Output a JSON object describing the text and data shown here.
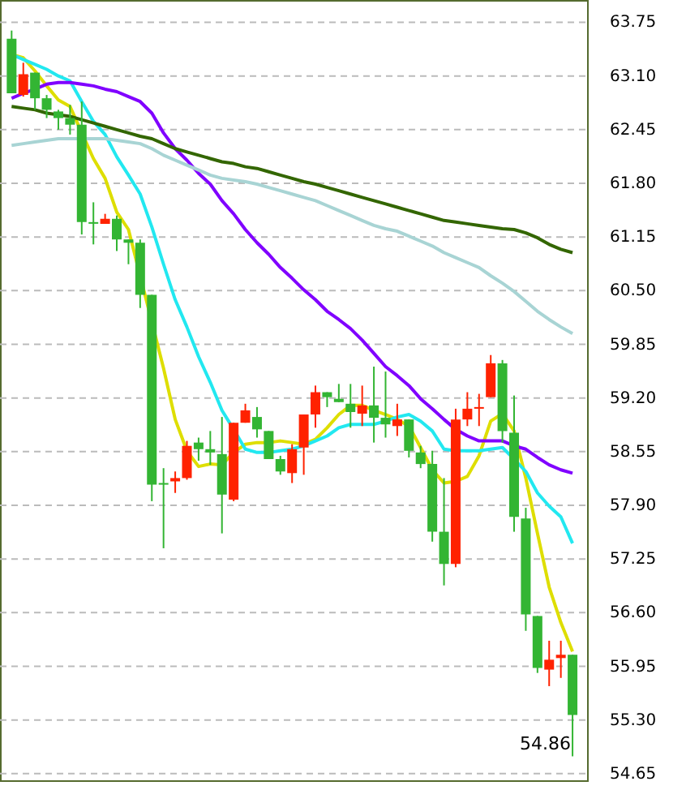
{
  "chart_data": {
    "type": "candlestick",
    "categories": [
      null,
      null,
      null,
      null,
      null,
      null,
      null,
      null,
      null,
      null,
      null,
      null,
      null,
      null,
      null,
      null,
      null,
      null,
      null,
      null,
      null,
      null,
      null,
      null,
      null,
      null,
      null,
      null,
      null,
      null,
      null,
      null,
      null,
      null,
      null,
      null,
      null,
      null,
      null,
      null,
      null,
      null,
      null,
      null,
      null,
      null,
      null,
      null,
      null
    ],
    "ohlc": [
      [
        63.55,
        63.65,
        62.89,
        62.89
      ],
      [
        62.87,
        63.26,
        62.85,
        63.12
      ],
      [
        63.14,
        63.14,
        62.69,
        62.83
      ],
      [
        62.83,
        62.87,
        62.59,
        62.69
      ],
      [
        62.67,
        62.69,
        62.45,
        62.59
      ],
      [
        62.59,
        62.75,
        62.39,
        62.51
      ],
      [
        62.51,
        62.79,
        61.18,
        61.33
      ],
      [
        61.33,
        61.57,
        61.06,
        61.31
      ],
      [
        61.31,
        61.43,
        61.31,
        61.37
      ],
      [
        61.37,
        61.41,
        60.98,
        61.12
      ],
      [
        61.12,
        61.12,
        60.82,
        61.08
      ],
      [
        61.08,
        61.12,
        60.29,
        60.45
      ],
      [
        60.45,
        60.45,
        57.95,
        58.15
      ],
      [
        58.17,
        58.35,
        57.38,
        58.15
      ],
      [
        58.19,
        58.31,
        58.05,
        58.23
      ],
      [
        58.23,
        58.68,
        58.21,
        58.62
      ],
      [
        58.66,
        58.72,
        58.44,
        58.58
      ],
      [
        58.58,
        58.8,
        58.39,
        58.54
      ],
      [
        58.52,
        58.97,
        57.56,
        58.03
      ],
      [
        57.97,
        58.9,
        57.95,
        58.9
      ],
      [
        58.9,
        59.13,
        58.9,
        59.05
      ],
      [
        58.97,
        59.09,
        58.72,
        58.82
      ],
      [
        58.8,
        58.8,
        58.46,
        58.46
      ],
      [
        58.46,
        58.5,
        58.27,
        58.31
      ],
      [
        58.29,
        58.64,
        58.17,
        58.58
      ],
      [
        58.6,
        59.0,
        58.27,
        59.0
      ],
      [
        59.0,
        59.35,
        58.84,
        59.27
      ],
      [
        59.27,
        59.27,
        59.09,
        59.21
      ],
      [
        59.19,
        59.37,
        59.15,
        59.15
      ],
      [
        59.13,
        59.37,
        58.84,
        59.03
      ],
      [
        59.01,
        59.35,
        58.86,
        59.11
      ],
      [
        59.11,
        59.58,
        58.66,
        58.96
      ],
      [
        58.96,
        59.52,
        58.72,
        58.88
      ],
      [
        58.86,
        59.13,
        58.74,
        58.94
      ],
      [
        58.94,
        58.94,
        58.48,
        58.56
      ],
      [
        58.54,
        58.62,
        58.35,
        58.4
      ],
      [
        58.4,
        58.56,
        57.46,
        57.58
      ],
      [
        57.58,
        58.23,
        56.93,
        57.19
      ],
      [
        57.19,
        59.07,
        57.15,
        58.94
      ],
      [
        58.94,
        59.27,
        58.86,
        59.07
      ],
      [
        59.07,
        59.25,
        58.86,
        59.09
      ],
      [
        59.21,
        59.72,
        59.21,
        59.62
      ],
      [
        59.62,
        59.66,
        58.66,
        58.8
      ],
      [
        58.78,
        59.23,
        57.58,
        57.76
      ],
      [
        57.74,
        57.87,
        56.38,
        56.58
      ],
      [
        56.56,
        56.56,
        55.87,
        55.93
      ],
      [
        55.91,
        56.26,
        55.71,
        56.03
      ],
      [
        56.05,
        56.26,
        55.81,
        56.09
      ],
      [
        56.09,
        56.09,
        54.86,
        55.36
      ]
    ],
    "colors": [
      "#33b533",
      "#ff2200",
      "#33b533",
      "#33b533",
      "#33b533",
      "#33b533",
      "#33b533",
      "#33b533",
      "#ff2200",
      "#33b533",
      "#33b533",
      "#33b533",
      "#33b533",
      "#33b533",
      "#ff2200",
      "#ff2200",
      "#33b533",
      "#33b533",
      "#33b533",
      "#ff2200",
      "#ff2200",
      "#33b533",
      "#33b533",
      "#33b533",
      "#ff2200",
      "#ff2200",
      "#ff2200",
      "#33b533",
      "#33b533",
      "#33b533",
      "#ff2200",
      "#33b533",
      "#33b533",
      "#ff2200",
      "#33b533",
      "#33b533",
      "#33b533",
      "#33b533",
      "#ff2200",
      "#ff2200",
      "#ff2200",
      "#ff2200",
      "#33b533",
      "#33b533",
      "#33b533",
      "#33b533",
      "#ff2200",
      "#ff2200",
      "#33b533"
    ],
    "series": [
      {
        "type": "line",
        "color": "#dede00",
        "values": [
          63.36,
          63.32,
          63.16,
          62.98,
          62.81,
          62.73,
          null,
          62.1,
          61.86,
          61.45,
          61.24,
          null,
          null,
          59.56,
          58.94,
          58.56,
          58.37,
          58.4,
          58.39,
          58.54,
          58.64,
          58.66,
          58.66,
          58.68,
          58.66,
          58.64,
          58.7,
          58.84,
          59.0,
          59.11,
          59.11,
          59.05,
          59.0,
          58.94,
          58.86,
          58.6,
          58.33,
          58.17,
          58.19,
          58.25,
          58.5,
          58.92,
          59.01,
          58.8,
          58.23,
          57.56,
          56.91,
          56.48,
          56.13
        ]
      },
      {
        "type": "line",
        "color": "#22e8f0",
        "values": [
          63.36,
          63.3,
          63.24,
          63.18,
          63.1,
          63.04,
          62.79,
          62.55,
          62.39,
          62.12,
          61.9,
          61.67,
          61.27,
          60.82,
          60.39,
          60.06,
          59.7,
          59.39,
          59.05,
          58.82,
          58.58,
          58.54,
          58.54,
          58.56,
          58.58,
          58.62,
          58.68,
          58.74,
          58.84,
          58.88,
          58.88,
          58.88,
          58.92,
          58.97,
          59.0,
          58.92,
          58.8,
          58.58,
          58.56,
          58.56,
          58.56,
          58.58,
          58.6,
          58.46,
          58.31,
          58.05,
          57.89,
          57.76,
          57.44
        ]
      },
      {
        "type": "line",
        "color": "#8000ff",
        "values": [
          62.83,
          62.89,
          62.94,
          63.0,
          63.02,
          63.02,
          63.0,
          62.98,
          62.94,
          62.91,
          62.85,
          62.79,
          62.65,
          62.41,
          62.22,
          62.08,
          61.92,
          61.79,
          61.59,
          61.43,
          61.24,
          61.08,
          60.94,
          60.78,
          60.65,
          60.51,
          60.39,
          60.25,
          60.15,
          60.04,
          59.9,
          59.74,
          59.58,
          59.47,
          59.35,
          59.19,
          59.07,
          58.94,
          58.82,
          58.74,
          58.68,
          58.68,
          58.68,
          58.62,
          58.58,
          58.48,
          58.39,
          58.33,
          58.29
        ]
      },
      {
        "type": "line",
        "color": "#336600",
        "values": [
          62.73,
          62.71,
          62.69,
          62.65,
          62.63,
          62.61,
          62.57,
          62.53,
          62.49,
          62.45,
          62.41,
          62.37,
          62.34,
          62.28,
          62.22,
          62.18,
          62.14,
          62.1,
          62.06,
          62.04,
          62.0,
          61.98,
          61.94,
          61.9,
          61.86,
          61.82,
          61.79,
          61.75,
          61.71,
          61.67,
          61.63,
          61.59,
          61.55,
          61.51,
          61.47,
          61.43,
          61.39,
          61.35,
          61.33,
          61.31,
          61.29,
          61.27,
          61.25,
          61.24,
          61.2,
          61.14,
          61.06,
          61.0,
          60.96
        ]
      },
      {
        "type": "line",
        "color": "#a8d4d4",
        "values": [
          62.26,
          62.28,
          62.3,
          62.32,
          62.34,
          62.34,
          62.34,
          62.34,
          62.34,
          62.32,
          62.3,
          62.28,
          62.22,
          62.14,
          62.08,
          62.02,
          61.96,
          61.9,
          61.86,
          61.84,
          61.82,
          61.79,
          61.75,
          61.71,
          61.67,
          61.63,
          61.59,
          61.53,
          61.47,
          61.41,
          61.35,
          61.29,
          61.25,
          61.22,
          61.16,
          61.1,
          61.04,
          60.96,
          60.9,
          60.84,
          60.78,
          60.68,
          60.59,
          60.49,
          60.37,
          60.25,
          60.15,
          60.06,
          59.98
        ]
      }
    ],
    "ylim": [
      54.57,
      64.02
    ],
    "yticks": [
      63.75,
      {
        "value": 63.1,
        "label": "63.10"
      },
      62.45,
      {
        "value": 61.8,
        "label": "61.80"
      },
      61.15,
      {
        "value": 60.5,
        "label": "60.50"
      },
      59.85,
      {
        "value": 59.2,
        "label": "59.20"
      },
      58.55,
      {
        "value": 57.9,
        "label": "57.90"
      },
      57.25,
      {
        "value": 56.6,
        "label": "56.60"
      },
      55.95,
      {
        "value": 55.3,
        "label": "55.30"
      },
      54.65
    ],
    "tick_labels": "y",
    "grid": "y",
    "annotations": [
      "54.86"
    ]
  }
}
